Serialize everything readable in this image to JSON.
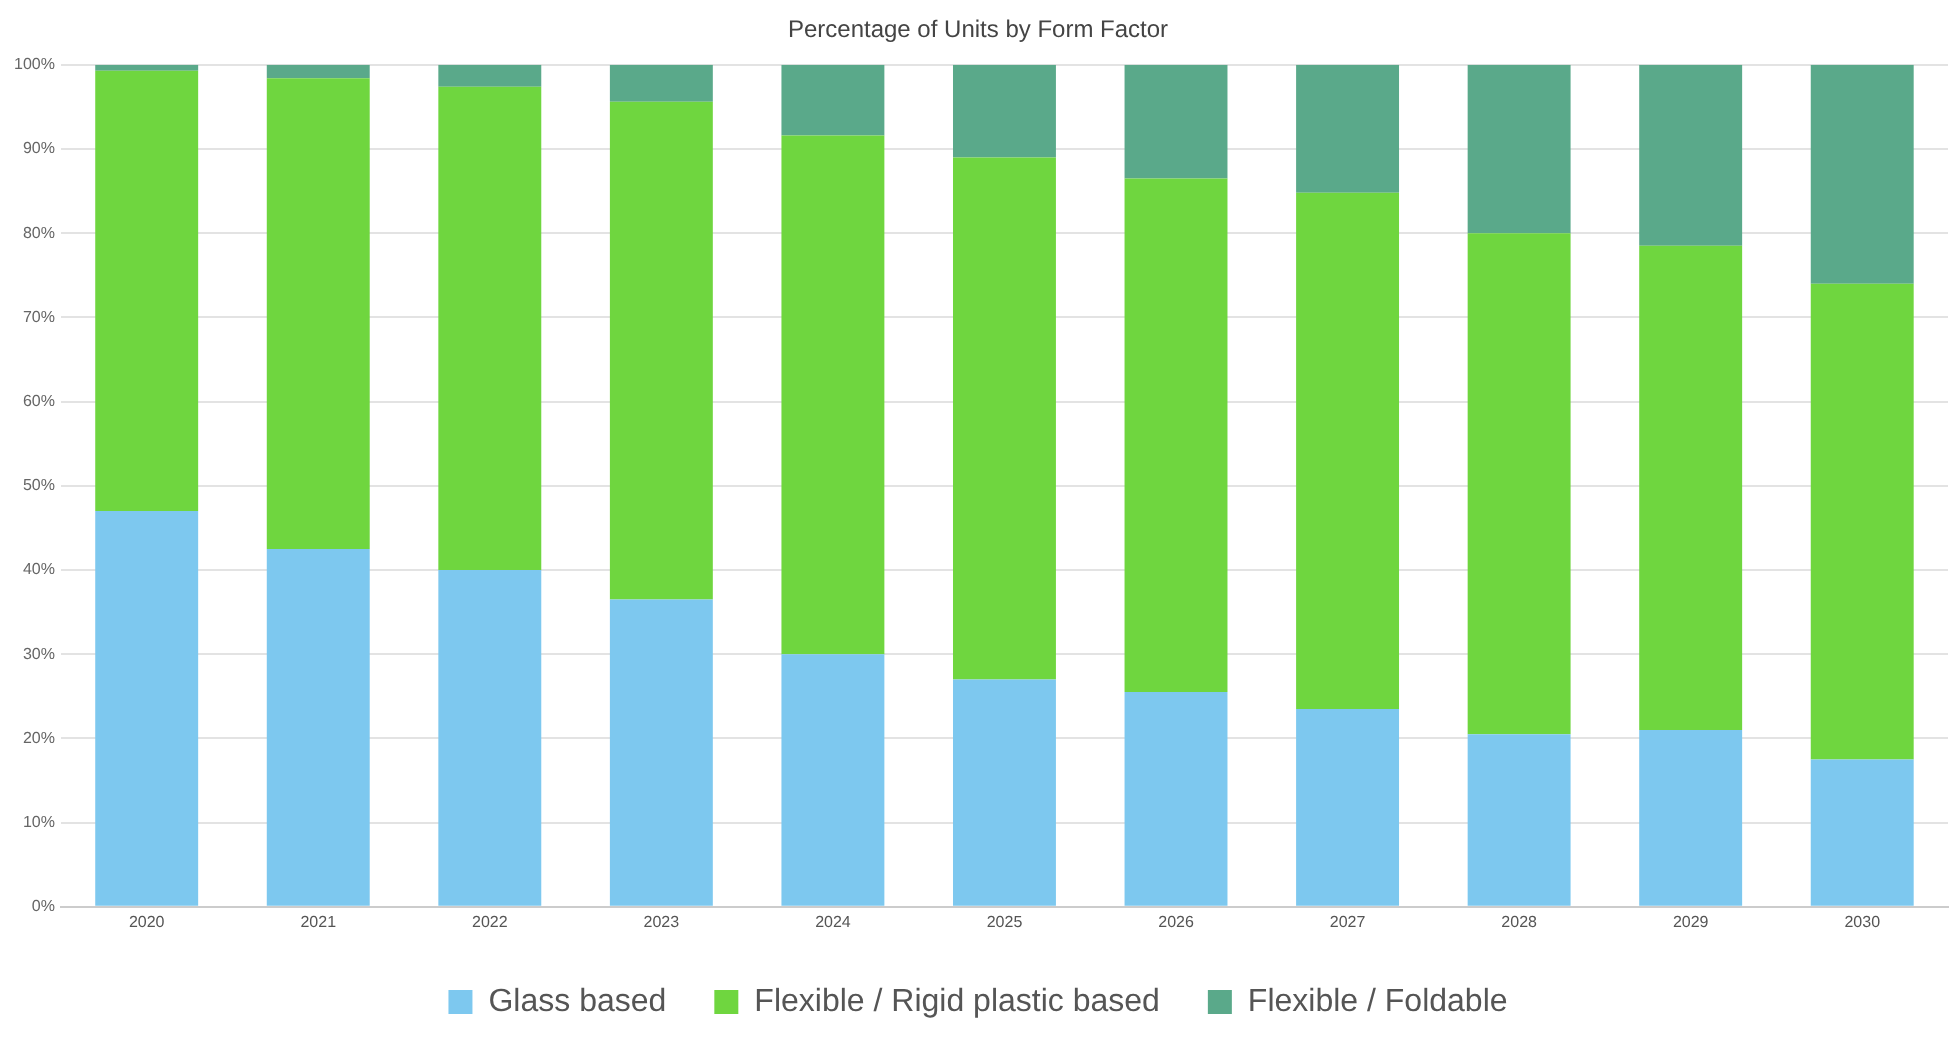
{
  "chart_data": {
    "type": "bar",
    "title": "Percentage of Units by Form Factor",
    "stacked": true,
    "categories": [
      "2020",
      "2021",
      "2022",
      "2023",
      "2024",
      "2025",
      "2026",
      "2027",
      "2028",
      "2029",
      "2030"
    ],
    "series": [
      {
        "name": "Glass based",
        "color": "#7dc8ef",
        "values": [
          47,
          42.5,
          40,
          36.5,
          30,
          27,
          25.5,
          23.5,
          20.5,
          21,
          17.5
        ]
      },
      {
        "name": "Flexible / Rigid plastic based",
        "color": "#6fd63f",
        "values": [
          52.3,
          55.9,
          57.4,
          59.1,
          61.6,
          62,
          61,
          61.3,
          59.5,
          57.5,
          56.5
        ]
      },
      {
        "name": "Flexible / Foldable",
        "color": "#5aa98a",
        "values": [
          0.7,
          1.6,
          2.6,
          4.4,
          8.4,
          11,
          13.5,
          15.2,
          20,
          21.5,
          26
        ]
      }
    ],
    "ylim": [
      0,
      100
    ],
    "yticks": [
      {
        "value": 0,
        "label": "0%"
      },
      {
        "value": 10,
        "label": "10%"
      },
      {
        "value": 20,
        "label": "20%"
      },
      {
        "value": 30,
        "label": "30%"
      },
      {
        "value": 40,
        "label": "40%"
      },
      {
        "value": 50,
        "label": "50%"
      },
      {
        "value": 60,
        "label": "60%"
      },
      {
        "value": 70,
        "label": "70%"
      },
      {
        "value": 80,
        "label": "80%"
      },
      {
        "value": 90,
        "label": "90%"
      },
      {
        "value": 100,
        "label": "100%"
      }
    ],
    "grid": "y",
    "legend": "bottom"
  }
}
